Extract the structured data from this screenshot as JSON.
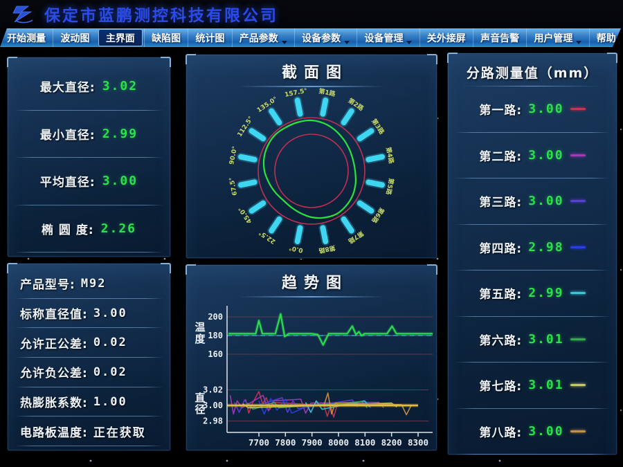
{
  "header": {
    "title": "保定市蓝鹏测控科技有限公司"
  },
  "menu": {
    "items": [
      {
        "name": "start-measure",
        "label": "开始测量",
        "selected": false,
        "dropdown": false
      },
      {
        "name": "fluctuation-chart",
        "label": "波动图",
        "selected": false,
        "dropdown": false
      },
      {
        "name": "main-view",
        "label": "主界面",
        "selected": true,
        "dropdown": false
      },
      {
        "name": "defect-chart",
        "label": "缺陷图",
        "selected": false,
        "dropdown": false
      },
      {
        "name": "statistics-chart",
        "label": "统计图",
        "selected": false,
        "dropdown": false
      },
      {
        "name": "product-params",
        "label": "产品参数",
        "selected": false,
        "dropdown": true
      },
      {
        "name": "device-params",
        "label": "设备参数",
        "selected": false,
        "dropdown": true
      },
      {
        "name": "device-management",
        "label": "设备管理",
        "selected": false,
        "dropdown": true
      },
      {
        "name": "external-screen",
        "label": "关外接屏",
        "selected": false,
        "dropdown": false
      },
      {
        "name": "sound-alarm",
        "label": "声音告警",
        "selected": false,
        "dropdown": false
      },
      {
        "name": "user-management",
        "label": "用户管理",
        "selected": false,
        "dropdown": true
      },
      {
        "name": "help",
        "label": "帮助",
        "selected": false,
        "dropdown": false
      }
    ]
  },
  "measurements": {
    "rows": [
      {
        "name": "max-diameter",
        "label": "最大直径:",
        "value": "3.02"
      },
      {
        "name": "min-diameter",
        "label": "最小直径:",
        "value": "2.99"
      },
      {
        "name": "avg-diameter",
        "label": "平均直径:",
        "value": "3.00"
      },
      {
        "name": "ovality",
        "label": "椭 圆 度:",
        "value": "2.26"
      }
    ]
  },
  "product": {
    "rows": [
      {
        "name": "product-model",
        "label": "产品型号:",
        "value": "M92"
      },
      {
        "name": "nominal-diameter",
        "label": "标称直径值:",
        "value": "3.00"
      },
      {
        "name": "plus-tolerance",
        "label": "允许正公差:",
        "value": "0.02"
      },
      {
        "name": "minus-tolerance",
        "label": "允许负公差:",
        "value": "0.02"
      },
      {
        "name": "thermal-expansion",
        "label": "热膨胀系数:",
        "value": "1.00"
      },
      {
        "name": "board-temperature",
        "label": "电路板温度:",
        "value": "正在获取"
      }
    ]
  },
  "channels": {
    "title": "分路测量值（mm）",
    "rows": [
      {
        "name": "channel-1",
        "label": "第一路:",
        "value": "3.00",
        "color": "#c23553"
      },
      {
        "name": "channel-2",
        "label": "第二路:",
        "value": "3.00",
        "color": "#a439b8"
      },
      {
        "name": "channel-3",
        "label": "第三路:",
        "value": "3.00",
        "color": "#5a3fd0"
      },
      {
        "name": "channel-4",
        "label": "第四路:",
        "value": "2.98",
        "color": "#2b3fe0"
      },
      {
        "name": "channel-5",
        "label": "第五路:",
        "value": "2.99",
        "color": "#3fc3d8"
      },
      {
        "name": "channel-6",
        "label": "第六路:",
        "value": "3.01",
        "color": "#38a94f"
      },
      {
        "name": "channel-7",
        "label": "第七路:",
        "value": "3.01",
        "color": "#c3cc5a"
      },
      {
        "name": "channel-8",
        "label": "第八路:",
        "value": "3.00",
        "color": "#c78f45"
      }
    ]
  },
  "chart_data": [
    {
      "id": "section",
      "type": "polar-profile",
      "title": "截面图",
      "spokes": [
        {
          "label": "第1路",
          "angle": 11.25
        },
        {
          "label": "第2路",
          "angle": 33.75
        },
        {
          "label": "第3路",
          "angle": 56.25
        },
        {
          "label": "第4路",
          "angle": 78.75
        },
        {
          "label": "第5路",
          "angle": 101.25
        },
        {
          "label": "第6路",
          "angle": 123.75
        },
        {
          "label": "第7路",
          "angle": 146.25
        },
        {
          "label": "第8路",
          "angle": 168.75
        },
        {
          "label": "0.0°",
          "angle": 191.25
        },
        {
          "label": "22.5°",
          "angle": 213.75
        },
        {
          "label": "45.0°",
          "angle": 236.25
        },
        {
          "label": "67.5°",
          "angle": 258.75
        },
        {
          "label": "90.0°",
          "angle": 281.25
        },
        {
          "label": "112.5°",
          "angle": 303.75
        },
        {
          "label": "135.0°",
          "angle": 326.25
        },
        {
          "label": "157.5°",
          "angle": 348.75
        }
      ],
      "outer_circle_r": 77,
      "inner_circle_r": 53,
      "profile_radii": [
        73,
        71,
        68,
        65,
        63,
        62,
        63,
        66,
        69,
        71,
        72,
        70,
        67,
        63,
        60,
        59,
        61,
        64,
        68,
        71,
        73,
        74,
        73,
        73
      ],
      "tolerance_color": "#c22f50",
      "profile_color": "#2be33c",
      "tick_color": "#3fd6f2",
      "label_color": "#c8d96a"
    },
    {
      "id": "temperature",
      "type": "line",
      "title": "趋势图",
      "ylabel": "温度",
      "yticks": [
        200,
        180,
        160
      ],
      "gridlines": [
        {
          "y": 200,
          "color": "#7a3f50"
        },
        {
          "y": 180,
          "color": "#88a2b8"
        },
        {
          "y": 160,
          "color": "#7a3f50"
        }
      ],
      "dashed_line": {
        "y": 180,
        "color": "#38c8dc"
      },
      "series": [
        {
          "name": "温度",
          "color": "#2ddd4f",
          "points": [
            [
              7585,
              182
            ],
            [
              7688,
              182
            ],
            [
              7700,
              196
            ],
            [
              7713,
              182
            ],
            [
              7762,
              182
            ],
            [
              7782,
              203
            ],
            [
              7797,
              179
            ],
            [
              7813,
              182
            ],
            [
              7898,
              182
            ],
            [
              7922,
              181
            ],
            [
              7942,
              170
            ],
            [
              7963,
              182
            ],
            [
              8033,
              182
            ],
            [
              8052,
              190
            ],
            [
              8066,
              181
            ],
            [
              8077,
              184
            ],
            [
              8087,
              180
            ],
            [
              8098,
              182
            ],
            [
              8183,
              182
            ],
            [
              8202,
              190
            ],
            [
              8218,
              182
            ],
            [
              8355,
              182
            ]
          ]
        }
      ]
    },
    {
      "id": "diameter",
      "type": "line",
      "ylabel": "直径",
      "yticks": [
        "3.02",
        "3.00",
        "2.98"
      ],
      "xticks": [
        7700,
        7800,
        7900,
        8000,
        8100,
        8200,
        8300
      ],
      "xlim": [
        7580,
        8360
      ],
      "nominal_line": {
        "y": 3.0,
        "color": "#e2bc3c"
      },
      "gridlines": [
        {
          "y": 3.02,
          "color": "#6a4472"
        },
        {
          "y": 2.98,
          "color": "#7a3f50"
        }
      ],
      "series": [
        {
          "name": "第1路",
          "color": "#c23553",
          "points": [
            [
              7650,
              3.008
            ],
            [
              7662,
              2.99
            ],
            [
              7676,
              3.003
            ],
            [
              7700,
              3.018
            ],
            [
              7714,
              3.002
            ],
            [
              7728,
              3.01
            ],
            [
              7742,
              2.995
            ],
            [
              7756,
              3.004
            ],
            [
              7945,
              3.0
            ],
            [
              7958,
              2.986
            ],
            [
              7970,
              2.999
            ],
            [
              7982,
              2.985
            ],
            [
              7996,
              3.002
            ]
          ]
        },
        {
          "name": "第2路",
          "color": "#a439b8",
          "points": [
            [
              7592,
              3.013
            ],
            [
              7604,
              2.989
            ],
            [
              7618,
              3.006
            ],
            [
              7636,
              2.997
            ],
            [
              7716,
              3.013
            ],
            [
              7736,
              2.993
            ],
            [
              7756,
              3.006
            ],
            [
              7858,
              3.008
            ],
            [
              7876,
              2.99
            ],
            [
              7896,
              3.003
            ],
            [
              8152,
              3.004
            ],
            [
              8170,
              2.997
            ]
          ]
        },
        {
          "name": "第3路",
          "color": "#5a3fd0",
          "points": [
            [
              7608,
              3.004
            ],
            [
              7626,
              2.991
            ],
            [
              7646,
              3.007
            ],
            [
              7668,
              2.997
            ],
            [
              7788,
              3.01
            ],
            [
              7808,
              2.991
            ],
            [
              7828,
              3.006
            ],
            [
              7848,
              2.996
            ],
            [
              8052,
              3.007
            ],
            [
              8072,
              2.998
            ]
          ]
        },
        {
          "name": "第4路",
          "color": "#2b3fe0",
          "points": [
            [
              7700,
              3.006
            ],
            [
              7720,
              2.989
            ],
            [
              7744,
              3.009
            ],
            [
              7768,
              2.994
            ],
            [
              7800,
              3.008
            ],
            [
              7824,
              2.99
            ],
            [
              7896,
              3.001
            ],
            [
              8102,
              3.005
            ],
            [
              8122,
              2.997
            ]
          ]
        },
        {
          "name": "第5路",
          "color": "#3fc3d8",
          "points": [
            [
              7876,
              3.004
            ],
            [
              7896,
              2.991
            ],
            [
              7916,
              3.006
            ],
            [
              7938,
              2.995
            ],
            [
              8098,
              3.006
            ],
            [
              8118,
              2.998
            ]
          ]
        },
        {
          "name": "第6路",
          "color": "#38a94f",
          "points": [
            [
              7658,
              3.003
            ],
            [
              7678,
              2.995
            ],
            [
              7758,
              3.004
            ],
            [
              7776,
              2.997
            ],
            [
              8088,
              3.005
            ],
            [
              8108,
              2.997
            ]
          ]
        },
        {
          "name": "第7路",
          "color": "#c3cc5a",
          "points": [
            [
              7640,
              3.002
            ],
            [
              7660,
              2.997
            ],
            [
              8200,
              3.003
            ],
            [
              8220,
              2.998
            ]
          ]
        },
        {
          "name": "第8路",
          "color": "#c78f45",
          "points": [
            [
              7946,
              3.001
            ],
            [
              7960,
              3.016
            ],
            [
              7974,
              2.989
            ],
            [
              7988,
              3.003
            ],
            [
              8238,
              3.001
            ],
            [
              8256,
              2.988
            ],
            [
              8274,
              3.0
            ]
          ]
        }
      ]
    }
  ]
}
